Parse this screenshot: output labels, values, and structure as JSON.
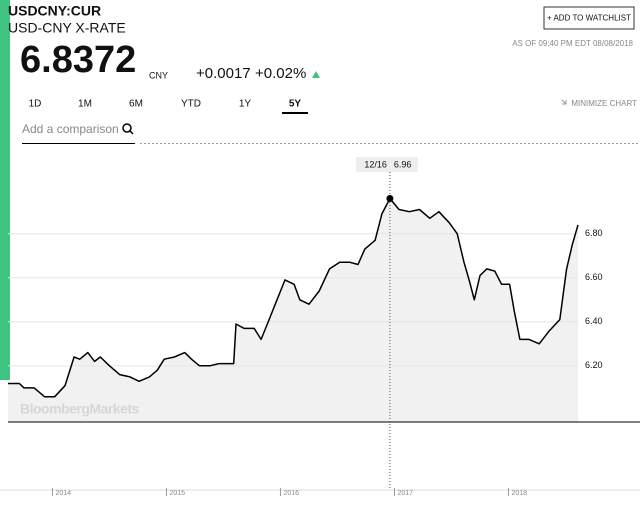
{
  "header": {
    "ticker": "USDCNY:CUR",
    "name": "USD-CNY X-RATE",
    "price": "6.8372",
    "currency": "CNY",
    "change": "+0.0017",
    "change_percent": "+0.02%",
    "watchlist_button": "+ ADD TO WATCHLIST",
    "timestamp": "AS OF 09:40 PM EDT 08/08/2018"
  },
  "tabs": [
    "1D",
    "1M",
    "6M",
    "YTD",
    "1Y",
    "5Y"
  ],
  "minimize": "MINIMIZE CHART",
  "comparison_placeholder": "Add a comparison",
  "watermark": "BloombergMarkets",
  "chart_data": {
    "type": "line",
    "color": "#000000",
    "x": [
      2013.61,
      2013.71,
      2013.75,
      2013.84,
      2013.93,
      2014.02,
      2014.11,
      2014.19,
      2014.24,
      2014.31,
      2014.37,
      2014.42,
      2014.5,
      2014.59,
      2014.68,
      2014.76,
      2014.85,
      2014.92,
      2014.98,
      2015.07,
      2015.16,
      2015.22,
      2015.29,
      2015.38,
      2015.46,
      2015.59,
      2015.61,
      2015.68,
      2015.77,
      2015.83,
      2015.9,
      2015.97,
      2016.04,
      2016.12,
      2016.17,
      2016.25,
      2016.34,
      2016.43,
      2016.52,
      2016.61,
      2016.68,
      2016.74,
      2016.83,
      2016.89,
      2016.96,
      2017.04,
      2017.13,
      2017.22,
      2017.31,
      2017.39,
      2017.48,
      2017.55,
      2017.61,
      2017.66,
      2017.7,
      2017.75,
      2017.81,
      2017.88,
      2017.94,
      2018.01,
      2018.05,
      2018.1,
      2018.18,
      2018.27,
      2018.36,
      2018.45,
      2018.51,
      2018.56,
      2018.61
    ],
    "values": [
      6.12,
      6.12,
      6.1,
      6.1,
      6.06,
      6.06,
      6.11,
      6.24,
      6.23,
      6.26,
      6.22,
      6.24,
      6.2,
      6.16,
      6.15,
      6.13,
      6.15,
      6.18,
      6.23,
      6.24,
      6.26,
      6.23,
      6.2,
      6.2,
      6.21,
      6.21,
      6.39,
      6.37,
      6.37,
      6.32,
      6.41,
      6.5,
      6.59,
      6.57,
      6.5,
      6.48,
      6.54,
      6.64,
      6.67,
      6.67,
      6.66,
      6.73,
      6.77,
      6.89,
      6.96,
      6.91,
      6.9,
      6.91,
      6.87,
      6.9,
      6.85,
      6.8,
      6.67,
      6.58,
      6.5,
      6.61,
      6.64,
      6.63,
      6.57,
      6.57,
      6.45,
      6.32,
      6.32,
      6.3,
      6.36,
      6.41,
      6.64,
      6.75,
      6.84
    ],
    "xlim": [
      2013.61,
      2018.61
    ],
    "ylim": [
      5.945,
      7.18
    ],
    "xticks": [
      2014,
      2015,
      2016,
      2017,
      2018
    ],
    "yticks": [
      {
        "value": 6.8,
        "label": "6.80"
      },
      {
        "value": 6.6,
        "label": "6.60"
      },
      {
        "value": 6.4,
        "label": "6.40"
      },
      {
        "value": 6.2,
        "label": "6.20"
      }
    ],
    "grid": true,
    "annotation": {
      "x": 2016.96,
      "x_label": "12/16",
      "value": 6.96
    }
  }
}
